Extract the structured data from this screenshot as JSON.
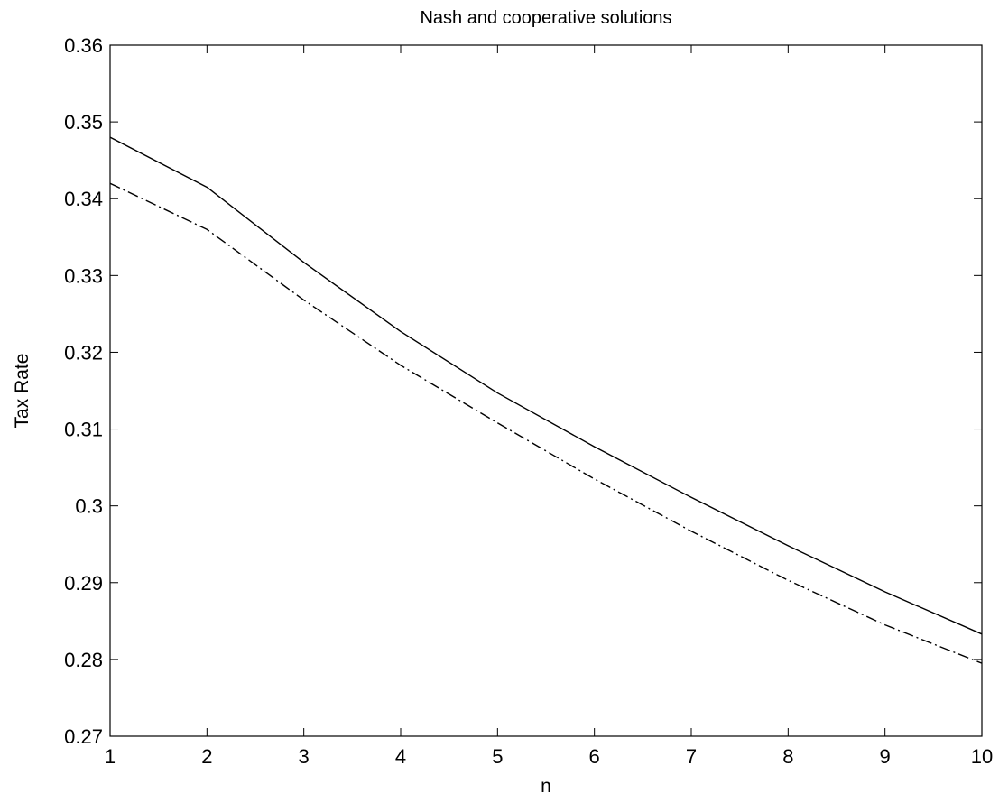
{
  "chart_data": {
    "type": "line",
    "title": "Nash and cooperative solutions",
    "xlabel": "n",
    "ylabel": "Tax Rate",
    "xlim": [
      1,
      10
    ],
    "ylim": [
      0.27,
      0.36
    ],
    "x_ticks": [
      "1",
      "2",
      "3",
      "4",
      "5",
      "6",
      "7",
      "8",
      "9",
      "10"
    ],
    "y_ticks": [
      "0.27",
      "0.28",
      "0.29",
      "0.3",
      "0.31",
      "0.32",
      "0.33",
      "0.34",
      "0.35",
      "0.36"
    ],
    "grid": false,
    "legend": "none",
    "x": [
      1,
      2,
      3,
      4,
      5,
      6,
      7,
      8,
      9,
      10
    ],
    "series": [
      {
        "line_style": "solid",
        "color": "#000000",
        "values": [
          0.348,
          0.3415,
          0.3317,
          0.3227,
          0.3147,
          0.3077,
          0.3011,
          0.2948,
          0.2888,
          0.2833
        ]
      },
      {
        "line_style": "dash-dot",
        "color": "#000000",
        "values": [
          0.342,
          0.336,
          0.3268,
          0.3183,
          0.3108,
          0.3035,
          0.2967,
          0.2903,
          0.2845,
          0.2795
        ]
      }
    ]
  }
}
